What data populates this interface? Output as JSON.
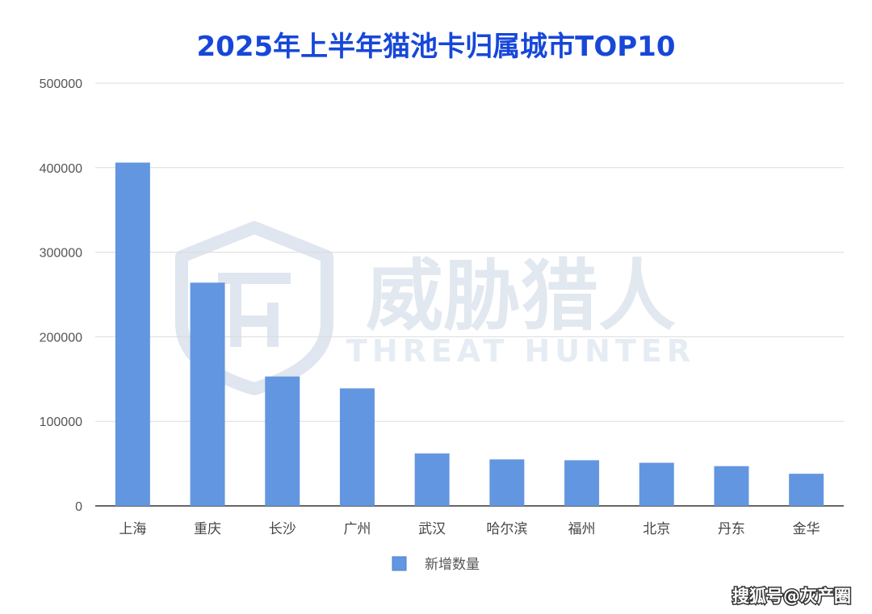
{
  "chart_data": {
    "type": "bar",
    "title": "2025年上半年猫池卡归属城市TOP10",
    "categories": [
      "上海",
      "重庆",
      "长沙",
      "广州",
      "武汉",
      "哈尔滨",
      "福州",
      "北京",
      "丹东",
      "金华"
    ],
    "series": [
      {
        "name": "新增数量",
        "values": [
          406000,
          264000,
          153000,
          139000,
          62000,
          55000,
          54000,
          51000,
          47000,
          38000
        ]
      }
    ],
    "xlabel": "",
    "ylabel": "",
    "ylim": [
      0,
      500000
    ],
    "yticks": [
      "0",
      "100000",
      "200000",
      "300000",
      "400000",
      "500000"
    ],
    "grid": true,
    "legend_position": "bottom-center"
  },
  "colors": {
    "bar": "#6396e0",
    "title": "#1747d9",
    "axis_text": "#555555",
    "grid": "#dcdcdc",
    "watermark": "#d9e0ea"
  },
  "watermark": {
    "main": "威胁猎人",
    "sub": "THREAT HUNTER",
    "icon": "shield-th-logo-icon"
  },
  "credit": "搜狐号@灰产圈"
}
